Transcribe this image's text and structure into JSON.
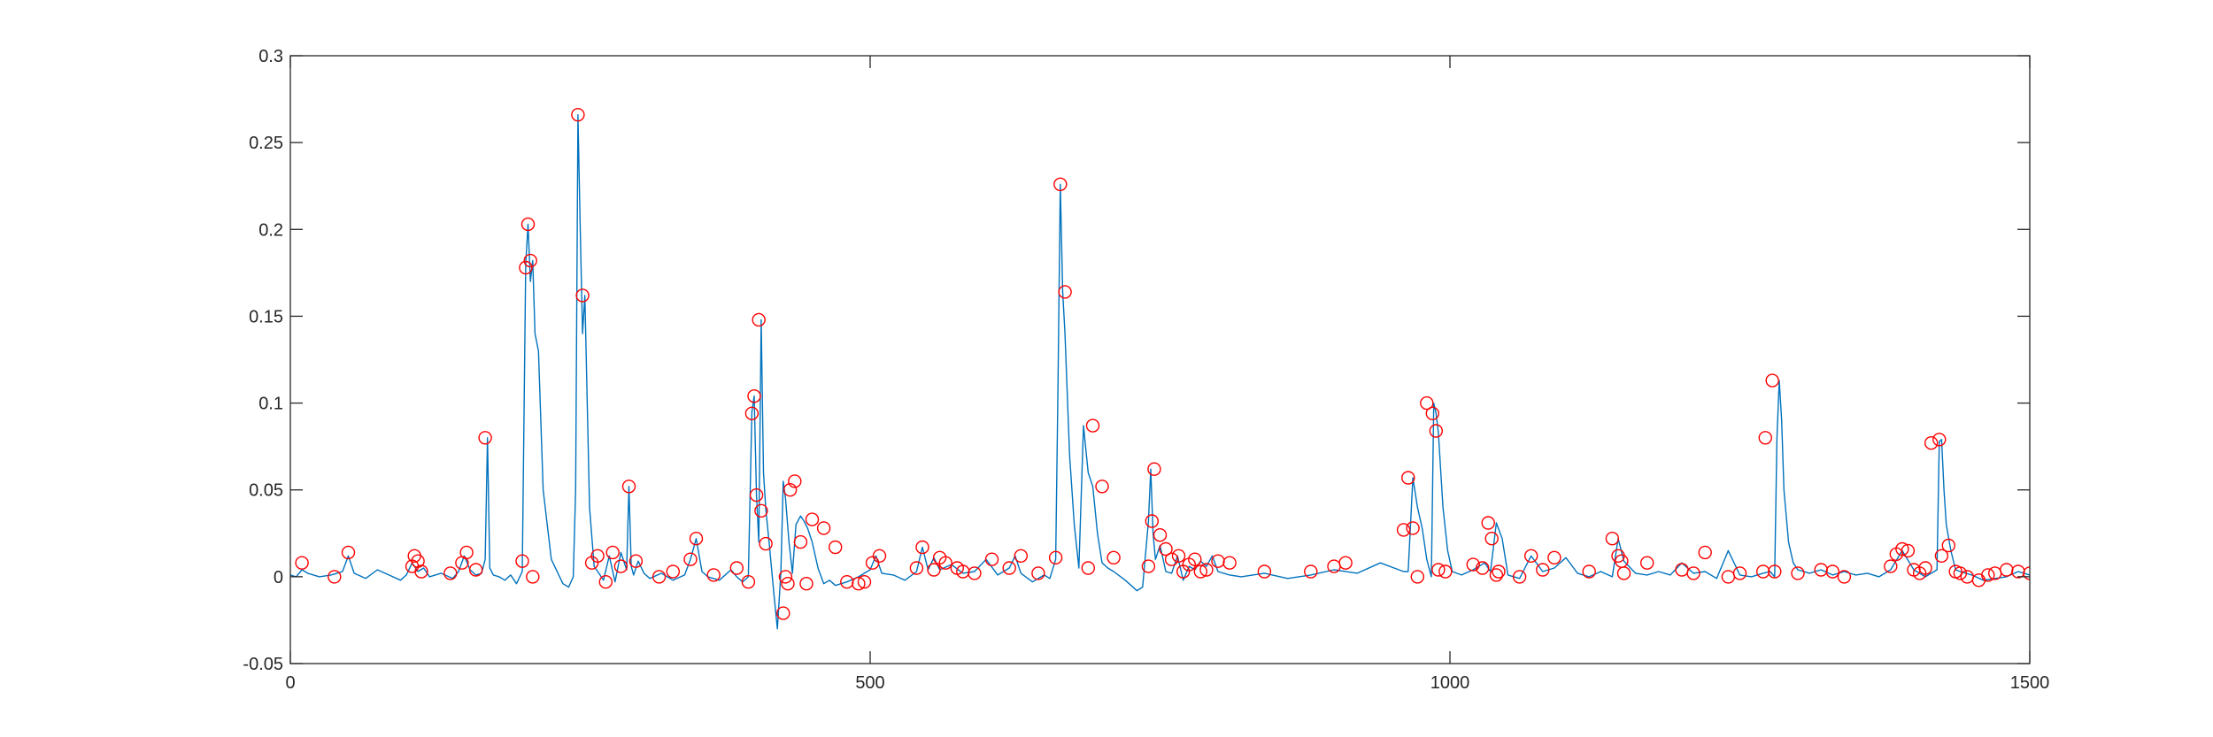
{
  "chart_data": {
    "type": "line",
    "title": "",
    "xlabel": "",
    "ylabel": "",
    "xlim": [
      0,
      1500
    ],
    "ylim": [
      -0.05,
      0.3
    ],
    "xticks": [
      0,
      500,
      1000,
      1500
    ],
    "xtick_labels": [
      "0",
      "500",
      "1000",
      "1500"
    ],
    "yticks": [
      -0.05,
      0,
      0.05,
      0.1,
      0.15,
      0.2,
      0.25,
      0.3
    ],
    "ytick_labels": [
      "-0.05",
      "0",
      "0.05",
      "0.1",
      "0.15",
      "0.2",
      "0.25",
      "0.3"
    ],
    "grid": false,
    "colors": {
      "line": "#0072bd",
      "markers": "#ff0000",
      "axes": "#262626"
    },
    "series": [
      {
        "kind": "line",
        "x": [
          0,
          5,
          10,
          15,
          25,
          35,
          45,
          50,
          55,
          65,
          75,
          85,
          95,
          100,
          105,
          110,
          115,
          120,
          130,
          140,
          145,
          150,
          155,
          160,
          165,
          168,
          170,
          172,
          175,
          180,
          185,
          190,
          195,
          200,
          203,
          205,
          207,
          209,
          211,
          214,
          218,
          225,
          235,
          240,
          244,
          246,
          248,
          250,
          252,
          254,
          256,
          258,
          262,
          266,
          270,
          275,
          280,
          285,
          290,
          292,
          294,
          296,
          300,
          305,
          310,
          320,
          330,
          340,
          345,
          350,
          355,
          360,
          370,
          380,
          385,
          390,
          395,
          398,
          400,
          402,
          404,
          406,
          408,
          410,
          413,
          417,
          420,
          423,
          425,
          427,
          430,
          433,
          436,
          440,
          443,
          446,
          450,
          455,
          460,
          465,
          470,
          480,
          490,
          500,
          505,
          510,
          520,
          530,
          540,
          545,
          550,
          555,
          560,
          570,
          580,
          590,
          600,
          610,
          620,
          625,
          630,
          640,
          650,
          655,
          660,
          662,
          664,
          666,
          668,
          672,
          676,
          680,
          684,
          688,
          692,
          696,
          700,
          705,
          710,
          720,
          725,
          730,
          735,
          740,
          742,
          744,
          746,
          750,
          755,
          760,
          765,
          770,
          775,
          780,
          785,
          790,
          795,
          800,
          810,
          820,
          840,
          860,
          880,
          900,
          920,
          940,
          960,
          964,
          968,
          972,
          976,
          980,
          984,
          986,
          988,
          990,
          994,
          998,
          1002,
          1010,
          1020,
          1030,
          1035,
          1040,
          1045,
          1050,
          1060,
          1070,
          1080,
          1090,
          1100,
          1110,
          1120,
          1130,
          1140,
          1145,
          1150,
          1160,
          1170,
          1180,
          1190,
          1200,
          1210,
          1220,
          1230,
          1240,
          1250,
          1260,
          1270,
          1276,
          1280,
          1282,
          1284,
          1286,
          1288,
          1292,
          1296,
          1300,
          1310,
          1320,
          1330,
          1340,
          1350,
          1360,
          1370,
          1380,
          1390,
          1400,
          1410,
          1415,
          1420,
          1422,
          1424,
          1426,
          1428,
          1432,
          1436,
          1440,
          1450,
          1460,
          1470,
          1480,
          1490,
          1500
        ],
        "y": [
          0.001,
          0.0,
          0.004,
          0.002,
          0.0,
          0.001,
          0.003,
          0.012,
          0.002,
          -0.001,
          0.004,
          0.001,
          -0.002,
          0.001,
          0.008,
          0.003,
          0.005,
          0.0,
          0.002,
          -0.001,
          0.003,
          0.012,
          0.004,
          0.001,
          0.002,
          0.01,
          0.08,
          0.005,
          0.001,
          0.0,
          -0.002,
          0.001,
          -0.004,
          0.003,
          0.18,
          0.203,
          0.17,
          0.182,
          0.14,
          0.13,
          0.05,
          0.01,
          -0.004,
          -0.006,
          0.0,
          0.05,
          0.266,
          0.2,
          0.14,
          0.162,
          0.1,
          0.04,
          0.006,
          0.002,
          -0.002,
          0.012,
          -0.003,
          0.014,
          0.004,
          0.052,
          0.006,
          0.001,
          0.009,
          0.002,
          -0.001,
          0.002,
          -0.002,
          0.001,
          0.01,
          0.022,
          0.003,
          0.0,
          -0.002,
          0.004,
          0.0,
          -0.003,
          0.0,
          0.095,
          0.104,
          0.047,
          0.02,
          0.148,
          0.06,
          0.039,
          0.019,
          -0.01,
          -0.03,
          0.002,
          0.055,
          0.045,
          0.02,
          0.002,
          0.03,
          0.035,
          0.032,
          0.028,
          0.02,
          0.005,
          -0.004,
          -0.002,
          -0.005,
          -0.003,
          0.0,
          0.004,
          0.012,
          0.002,
          0.001,
          -0.002,
          0.003,
          0.017,
          0.004,
          0.011,
          0.004,
          0.007,
          0.002,
          0.003,
          0.01,
          0.001,
          0.005,
          0.012,
          0.002,
          -0.003,
          0.001,
          -0.001,
          0.01,
          0.11,
          0.226,
          0.164,
          0.14,
          0.07,
          0.03,
          0.005,
          0.087,
          0.06,
          0.052,
          0.025,
          0.008,
          0.005,
          0.003,
          -0.002,
          -0.005,
          -0.008,
          -0.006,
          0.032,
          0.062,
          0.025,
          0.01,
          0.018,
          0.003,
          0.002,
          0.012,
          -0.002,
          0.006,
          0.004,
          0.009,
          0.006,
          0.012,
          0.003,
          0.001,
          0.0,
          0.002,
          -0.001,
          0.001,
          0.004,
          0.002,
          0.008,
          0.003,
          0.003,
          0.057,
          0.04,
          0.028,
          0.01,
          0.0,
          0.1,
          0.094,
          0.083,
          0.04,
          0.015,
          0.003,
          0.001,
          0.004,
          0.008,
          0.003,
          0.031,
          0.022,
          0.001,
          -0.001,
          0.012,
          0.003,
          0.005,
          0.011,
          0.002,
          0.0,
          0.003,
          0.0,
          0.022,
          0.009,
          0.002,
          0.001,
          0.003,
          0.001,
          0.008,
          0.002,
          0.003,
          -0.001,
          0.015,
          0.001,
          0.0,
          0.002,
          0.003,
          0.0,
          0.08,
          0.113,
          0.09,
          0.05,
          0.02,
          0.008,
          0.004,
          0.002,
          0.004,
          0.001,
          0.003,
          0.001,
          0.002,
          0.0,
          0.004,
          0.015,
          0.004,
          0.0,
          0.002,
          0.004,
          0.078,
          0.079,
          0.05,
          0.03,
          0.015,
          0.004,
          0.003,
          0.001,
          -0.002,
          -0.001,
          0.0,
          0.003,
          0.001
        ]
      },
      {
        "kind": "markers",
        "x": [
          10,
          38,
          50,
          105,
          107,
          110,
          113,
          138,
          148,
          152,
          160,
          168,
          200,
          203,
          205,
          207,
          209,
          248,
          252,
          260,
          265,
          272,
          278,
          285,
          292,
          298,
          318,
          330,
          345,
          350,
          365,
          385,
          395,
          398,
          400,
          402,
          404,
          406,
          410,
          425,
          427,
          429,
          431,
          435,
          440,
          445,
          450,
          460,
          470,
          480,
          490,
          495,
          502,
          508,
          540,
          545,
          555,
          560,
          565,
          575,
          580,
          590,
          605,
          620,
          630,
          645,
          660,
          664,
          668,
          688,
          692,
          700,
          710,
          740,
          743,
          745,
          750,
          755,
          760,
          766,
          770,
          775,
          780,
          785,
          790,
          800,
          810,
          840,
          880,
          900,
          910,
          960,
          964,
          968,
          972,
          980,
          985,
          988,
          990,
          996,
          1020,
          1028,
          1033,
          1036,
          1040,
          1042,
          1060,
          1070,
          1080,
          1090,
          1120,
          1140,
          1145,
          1148,
          1150,
          1170,
          1200,
          1210,
          1220,
          1240,
          1250,
          1270,
          1272,
          1278,
          1280,
          1300,
          1320,
          1330,
          1340,
          1380,
          1385,
          1390,
          1395,
          1400,
          1405,
          1410,
          1415,
          1422,
          1424,
          1430,
          1436,
          1440,
          1446,
          1456,
          1464,
          1470,
          1480,
          1490,
          1500
        ],
        "y": [
          0.008,
          0.0,
          0.014,
          0.006,
          0.012,
          0.009,
          0.003,
          0.002,
          0.008,
          0.014,
          0.004,
          0.08,
          0.009,
          0.178,
          0.203,
          0.182,
          0.0,
          0.266,
          0.162,
          0.008,
          0.012,
          -0.003,
          0.014,
          0.006,
          0.052,
          0.009,
          0.0,
          0.003,
          0.01,
          0.022,
          0.001,
          0.005,
          -0.003,
          0.094,
          0.104,
          0.047,
          0.148,
          0.038,
          0.019,
          -0.021,
          0.0,
          -0.004,
          0.05,
          0.055,
          0.02,
          -0.004,
          0.033,
          0.028,
          0.017,
          -0.003,
          -0.004,
          -0.003,
          0.008,
          0.012,
          0.005,
          0.017,
          0.004,
          0.011,
          0.008,
          0.005,
          0.003,
          0.002,
          0.01,
          0.005,
          0.012,
          0.002,
          0.011,
          0.226,
          0.164,
          0.005,
          0.087,
          0.052,
          0.011,
          0.006,
          0.032,
          0.062,
          0.024,
          0.016,
          0.01,
          0.012,
          0.003,
          0.007,
          0.01,
          0.003,
          0.004,
          0.009,
          0.008,
          0.003,
          0.003,
          0.006,
          0.008,
          0.027,
          0.057,
          0.028,
          0.0,
          0.1,
          0.094,
          0.084,
          0.004,
          0.003,
          0.007,
          0.005,
          0.031,
          0.022,
          0.001,
          0.003,
          0.0,
          0.012,
          0.004,
          0.011,
          0.003,
          0.022,
          0.012,
          0.009,
          0.002,
          0.008,
          0.004,
          0.002,
          0.014,
          0.0,
          0.002,
          0.003,
          0.08,
          0.113,
          0.003,
          0.002,
          0.004,
          0.003,
          0.0,
          0.006,
          0.013,
          0.016,
          0.015,
          0.004,
          0.002,
          0.005,
          0.077,
          0.079,
          0.012,
          0.018,
          0.003,
          0.002,
          0.0,
          -0.002,
          0.001,
          0.002,
          0.004,
          0.003,
          0.002
        ]
      }
    ]
  }
}
